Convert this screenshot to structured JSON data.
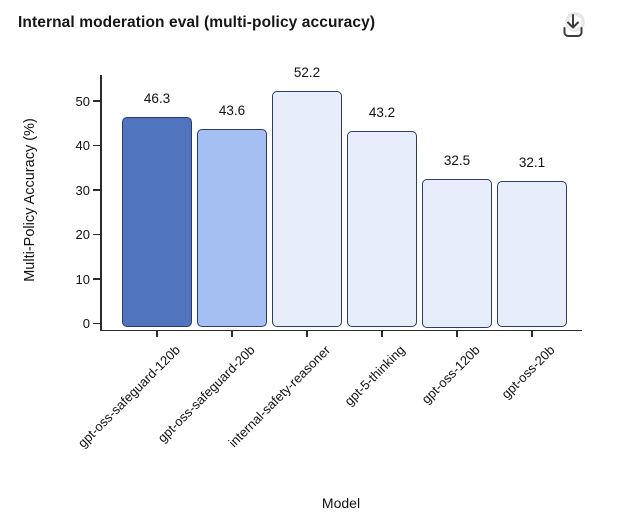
{
  "header": {
    "title": "Internal moderation eval (multi-policy accuracy)",
    "download_icon": "download-icon"
  },
  "chart_data": {
    "type": "bar",
    "title": "Internal moderation eval (multi-policy accuracy)",
    "xlabel": "Model",
    "ylabel": "Multi-Policy Accuracy (%)",
    "categories": [
      "gpt-oss-safeguard-120b",
      "gpt-oss-safeguard-20b",
      "internal-safety-reasoner",
      "gpt-5-thinking",
      "gpt-oss-120b",
      "gpt-oss-20b"
    ],
    "values": [
      46.3,
      43.6,
      52.2,
      43.2,
      32.5,
      32.1
    ],
    "value_labels": [
      "46.3",
      "43.6",
      "52.2",
      "43.2",
      "32.5",
      "32.1"
    ],
    "yticks": [
      0,
      10,
      20,
      30,
      40,
      50
    ],
    "ylim": [
      0,
      55.8
    ],
    "grid": false,
    "legend": null,
    "bar_fill_colors": [
      "#5074BE",
      "#A6BFF3",
      "#E7EDFB",
      "#E7EDFB",
      "#E7EDFB",
      "#E7EDFB"
    ],
    "bar_border_color": "#2c3b6b",
    "axis_color": "#2b2b2b",
    "text_color": "#111111"
  }
}
